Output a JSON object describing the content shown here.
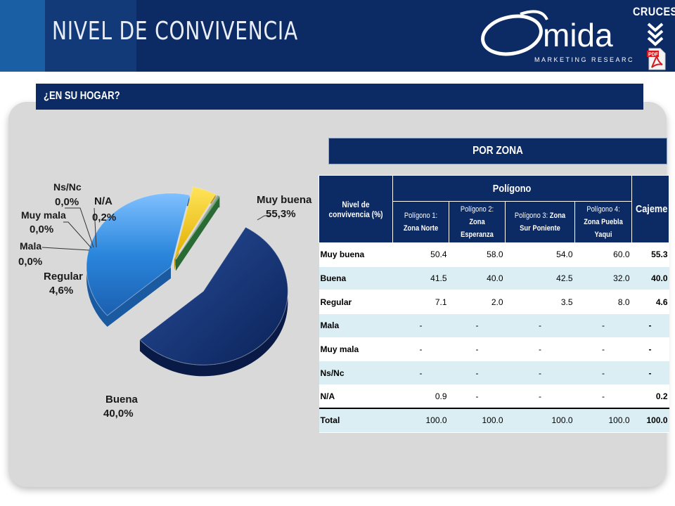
{
  "header": {
    "title": "NIVEL DE CONVIVENCIA",
    "logo_text": "mida",
    "logo_sub": "MARKETING RESEARCH",
    "cruces_label": "CRUCES",
    "pdf_label": "PDF"
  },
  "question": {
    "text": "¿EN SU HOGAR?"
  },
  "chart_data": {
    "type": "pie",
    "slices": [
      {
        "label": "Muy buena",
        "value": 55.3,
        "display": "55,3%",
        "color": "#0d2d6d"
      },
      {
        "label": "Buena",
        "value": 40.0,
        "display": "40,0%",
        "color": "#2a7fd0"
      },
      {
        "label": "Regular",
        "value": 4.6,
        "display": "4,6%",
        "color": "#f2c400"
      },
      {
        "label": "Mala",
        "value": 0.0,
        "display": "0,0%",
        "color": "#8e8e8e"
      },
      {
        "label": "Muy mala",
        "value": 0.0,
        "display": "0,0%",
        "color": "#6a6a6a"
      },
      {
        "label": "Ns/Nc",
        "value": 0.0,
        "display": "0,0%",
        "color": "#2f6b3a"
      },
      {
        "label": "N/A",
        "value": 0.2,
        "display": "0,2%",
        "color": "#3f8a4a"
      }
    ]
  },
  "table": {
    "title": "POR ZONA",
    "corner_header": "Nivel de convivencia (%)",
    "group_header": "Polígono",
    "total_header": "Cajeme",
    "columns": [
      {
        "prefix": "Polígono 1: ",
        "bold": "Zona Norte"
      },
      {
        "prefix": "Polígono 2: ",
        "bold": "Zona Esperanza"
      },
      {
        "prefix": "Polígono 3: ",
        "bold": "Zona Sur Poniente"
      },
      {
        "prefix": "Polígono 4: ",
        "bold": "Zona Puebla Yaqui"
      }
    ],
    "rows": [
      {
        "label": "Muy buena",
        "values": [
          "50.4",
          "58.0",
          "54.0",
          "60.0"
        ],
        "total": "55.3"
      },
      {
        "label": "Buena",
        "values": [
          "41.5",
          "40.0",
          "42.5",
          "32.0"
        ],
        "total": "40.0"
      },
      {
        "label": "Regular",
        "values": [
          "7.1",
          "2.0",
          "3.5",
          "8.0"
        ],
        "total": "4.6"
      },
      {
        "label": "Mala",
        "values": [
          "-",
          "-",
          "-",
          "-"
        ],
        "total": "-"
      },
      {
        "label": "Muy mala",
        "values": [
          "-",
          "-",
          "-",
          "-"
        ],
        "total": "-"
      },
      {
        "label": "Ns/Nc",
        "values": [
          "-",
          "-",
          "-",
          "-"
        ],
        "total": "-"
      },
      {
        "label": "N/A",
        "values": [
          "0.9",
          "-",
          "-",
          "-"
        ],
        "total": "0.2"
      },
      {
        "label": "Total",
        "values": [
          "100.0",
          "100.0",
          "100.0",
          "100.0"
        ],
        "total": "100.0"
      }
    ]
  }
}
